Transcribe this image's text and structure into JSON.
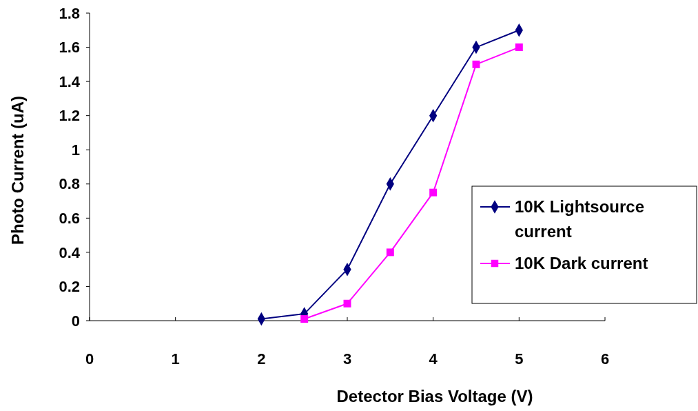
{
  "chart_data": {
    "type": "line",
    "xlabel": "Detector Bias Voltage (V)",
    "ylabel": "Photo Current (uA)",
    "xlim": [
      0,
      6
    ],
    "xticks": [
      0,
      1,
      2,
      3,
      4,
      5,
      6
    ],
    "ylim": [
      0,
      1.8
    ],
    "yticks": [
      0,
      0.2,
      0.4,
      0.6,
      0.8,
      1,
      1.2,
      1.4,
      1.6,
      1.8
    ],
    "grid": false,
    "legend": "right",
    "line_style": "solid",
    "series": [
      {
        "name": "10K Lightsource current",
        "color": "#000080",
        "marker": "diamond",
        "x": [
          2,
          2.5,
          3,
          3.5,
          4,
          4.5,
          5
        ],
        "values": [
          0.01,
          0.04,
          0.3,
          0.8,
          1.2,
          1.6,
          1.7
        ]
      },
      {
        "name": "10K Dark current",
        "color": "#ff00ff",
        "marker": "square",
        "x": [
          2.5,
          3,
          3.5,
          4,
          4.5,
          5
        ],
        "values": [
          0.01,
          0.1,
          0.4,
          0.75,
          1.5,
          1.6
        ]
      }
    ]
  }
}
